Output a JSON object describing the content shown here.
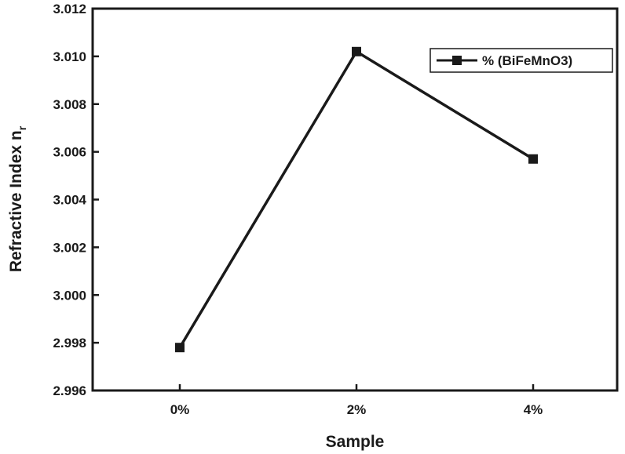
{
  "chart_data": {
    "type": "line",
    "categories": [
      "0%",
      "2%",
      "4%"
    ],
    "series": [
      {
        "name": "% (BiFeMnO3)",
        "values": [
          2.9978,
          3.0102,
          3.0057
        ]
      }
    ],
    "xlabel": "Sample",
    "ylabel_main": "Refractive Index n",
    "ylabel_sub": "r",
    "ylim": [
      2.996,
      3.012
    ],
    "yticks": [
      "2.996",
      "2.998",
      "3.000",
      "3.002",
      "3.004",
      "3.006",
      "3.008",
      "3.010",
      "3.012"
    ],
    "legend_position": "top-right",
    "grid": false,
    "marker": "square",
    "color": "#1a1a1a"
  }
}
